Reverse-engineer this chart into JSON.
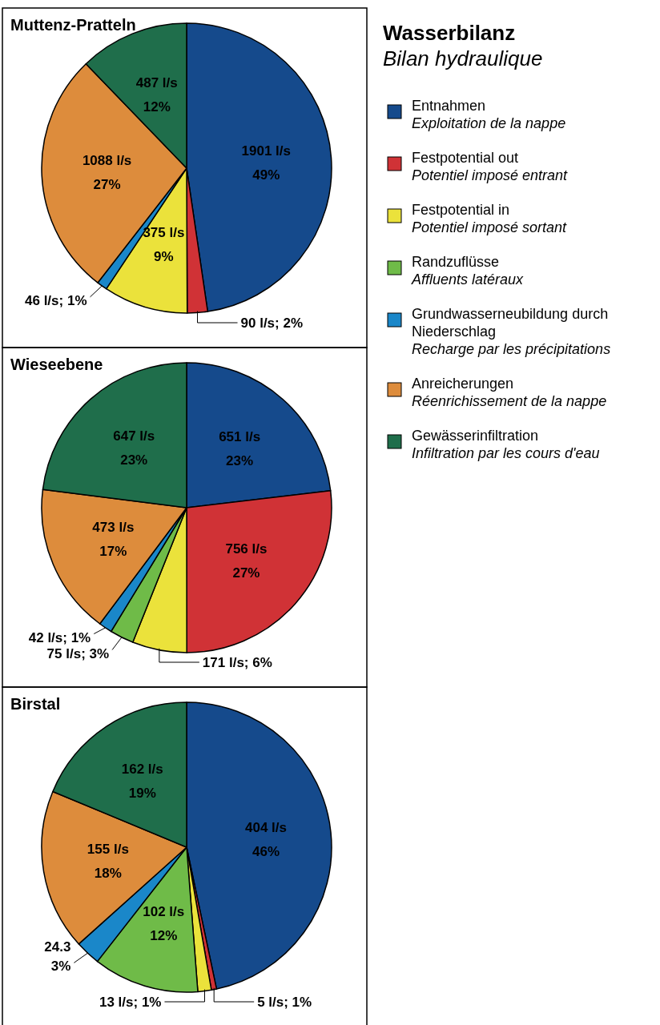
{
  "chart_data": [
    {
      "type": "pie",
      "title": "Muttenz-Pratteln",
      "legend": "right",
      "legend_title": "Wasserbilanz\nBilan hydraulique",
      "categories": [
        "Entnahmen\nExploitation de la nappe",
        "Festpotential out\nPotentiel imposé entrant",
        "Festpotential in\nPotentiel imposé sortant",
        "Randzuflüsse\nAffluents latéraux",
        "Grundwasserneubildung durch Niederschlag\nRecharge par les précipitations",
        "Anreicherungen\nRéenrichissement de la nappe",
        "Gewässerinfiltration\nInfiltration par les cours d'eau"
      ],
      "colors": [
        "#154a8c",
        "#d03236",
        "#ebe23b",
        "#6fbb48",
        "#1a87c9",
        "#dd8c3c",
        "#1f6e4b"
      ],
      "values": [
        1901,
        90,
        375,
        0,
        46,
        1088,
        487
      ],
      "value_labels": [
        "1901 l/s\n49%",
        "90 l/s; 2%",
        "375 l/s\n9%",
        null,
        "46 l/s; 1%",
        "1088 l/s\n27%",
        "487 l/s\n12%"
      ]
    },
    {
      "type": "pie",
      "title": "Wieseebene",
      "categories": [
        null,
        null,
        null,
        null,
        null,
        null,
        null
      ],
      "colors": [
        "#154a8c",
        "#d03236",
        "#ebe23b",
        "#6fbb48",
        "#1a87c9",
        "#dd8c3c",
        "#1f6e4b"
      ],
      "values": [
        651,
        756,
        171,
        75,
        42,
        473,
        647
      ],
      "value_labels": [
        "651 l/s\n23%",
        "756 l/s\n27%",
        "171 l/s; 6%",
        "75 l/s; 3%",
        "42 l/s; 1%",
        "473 l/s\n17%",
        "647 l/s\n23%"
      ]
    },
    {
      "type": "pie",
      "title": "Birstal",
      "categories": [
        null,
        null,
        null,
        null,
        null,
        null,
        null
      ],
      "colors": [
        "#154a8c",
        "#d03236",
        "#ebe23b",
        "#6fbb48",
        "#1a87c9",
        "#dd8c3c",
        "#1f6e4b"
      ],
      "values": [
        404,
        5,
        13,
        102,
        24.3,
        155,
        162
      ],
      "value_labels": [
        "404 l/s\n46%",
        "5 l/s; 1%",
        "13 l/s; 1%",
        "102 l/s\n12%",
        "24.3\n3%",
        "155 l/s\n18%",
        "162 l/s\n19%"
      ]
    }
  ]
}
